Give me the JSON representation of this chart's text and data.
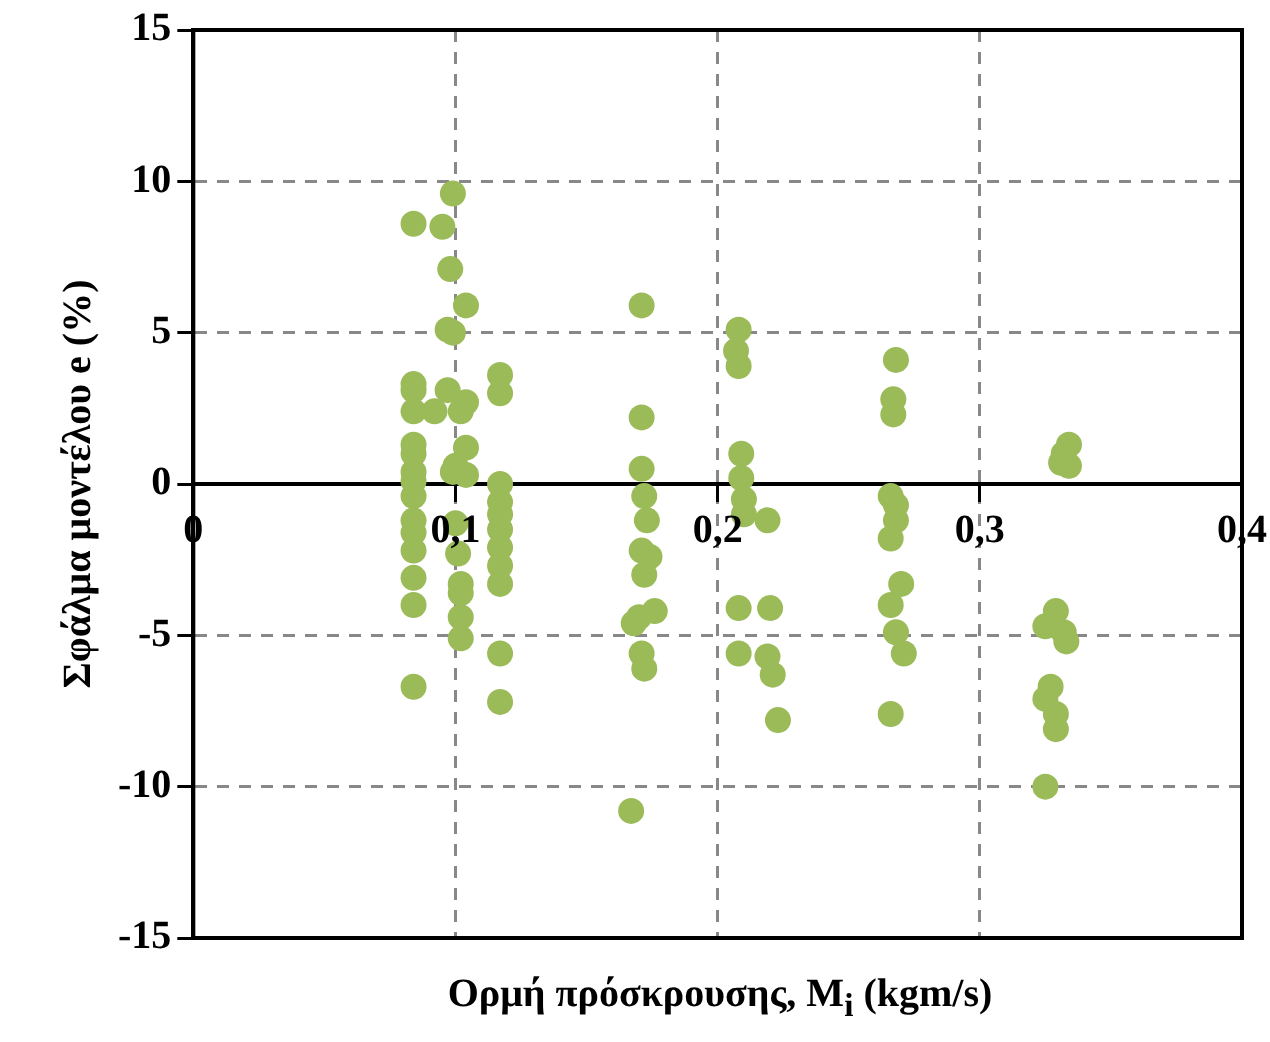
{
  "chart_data": {
    "type": "scatter",
    "xlabel": "Ορμή πρόσκρουσης, M$_{i}$ (kgm/s)",
    "ylabel": "Σφάλμα μοντέλου e (%)",
    "xlim": [
      0,
      0.4
    ],
    "xticks": [
      0,
      {
        "value": 0.1,
        "label": "0,1"
      },
      {
        "value": 0.2,
        "label": "0,2"
      },
      {
        "value": 0.3,
        "label": "0,3"
      },
      {
        "value": 0.4,
        "label": "0,4"
      }
    ],
    "ylim": [
      -15,
      15
    ],
    "yticks": [
      -15,
      -10,
      -5,
      0,
      5,
      10,
      15
    ],
    "grid": true,
    "legend": false,
    "marker": "circle",
    "series": [
      {
        "color": "#9bbb59",
        "x": [
          0.084,
          0.084,
          0.084,
          0.084,
          0.084,
          0.084,
          0.084,
          0.084,
          0.084,
          0.084,
          0.084,
          0.084,
          0.084,
          0.084,
          0.084,
          0.099,
          0.095,
          0.098,
          0.097,
          0.099,
          0.097,
          0.092,
          0.102,
          0.1,
          0.099,
          0.1,
          0.101,
          0.102,
          0.102,
          0.102,
          0.102,
          0.104,
          0.104,
          0.104,
          0.104,
          0.117,
          0.117,
          0.117,
          0.117,
          0.117,
          0.117,
          0.117,
          0.117,
          0.117,
          0.117,
          0.117,
          0.171,
          0.171,
          0.171,
          0.172,
          0.173,
          0.171,
          0.172,
          0.174,
          0.176,
          0.17,
          0.168,
          0.171,
          0.172,
          0.167,
          0.208,
          0.207,
          0.208,
          0.209,
          0.209,
          0.21,
          0.21,
          0.219,
          0.208,
          0.22,
          0.208,
          0.219,
          0.221,
          0.223,
          0.268,
          0.267,
          0.267,
          0.266,
          0.268,
          0.266,
          0.27,
          0.266,
          0.268,
          0.271,
          0.266,
          0.268,
          0.334,
          0.332,
          0.331,
          0.334,
          0.329,
          0.325,
          0.332,
          0.333,
          0.327,
          0.325,
          0.329,
          0.329,
          0.325
        ],
        "values": [
          8.6,
          3.3,
          2.4,
          1.3,
          0.4,
          0.1,
          -0.4,
          -1.2,
          -1.6,
          -2.2,
          -3.1,
          -4.0,
          -6.7,
          3.1,
          1.0,
          9.6,
          8.5,
          7.1,
          5.1,
          5.0,
          3.1,
          2.4,
          2.4,
          0.6,
          0.4,
          -1.3,
          -2.3,
          -3.3,
          -3.6,
          -4.4,
          -5.1,
          5.9,
          2.7,
          1.2,
          0.3,
          3.6,
          3.0,
          0.0,
          -0.6,
          -1.0,
          -1.5,
          -2.1,
          -2.7,
          -3.3,
          -5.6,
          -7.2,
          5.9,
          2.2,
          0.5,
          -0.4,
          -1.2,
          -2.2,
          -3.0,
          -2.4,
          -4.2,
          -4.4,
          -4.6,
          -5.6,
          -6.1,
          -10.8,
          5.1,
          4.4,
          3.9,
          1.0,
          0.2,
          -0.5,
          -1.0,
          -1.2,
          -4.1,
          -4.1,
          -5.6,
          -5.7,
          -6.3,
          -7.8,
          4.1,
          2.8,
          2.3,
          -0.4,
          -0.7,
          -1.8,
          -3.3,
          -4.0,
          -4.9,
          -5.6,
          -7.6,
          -1.2,
          1.3,
          1.0,
          0.7,
          0.6,
          -4.2,
          -4.7,
          -4.9,
          -5.2,
          -6.7,
          -7.1,
          -7.6,
          -8.1,
          -10.0
        ]
      }
    ]
  }
}
